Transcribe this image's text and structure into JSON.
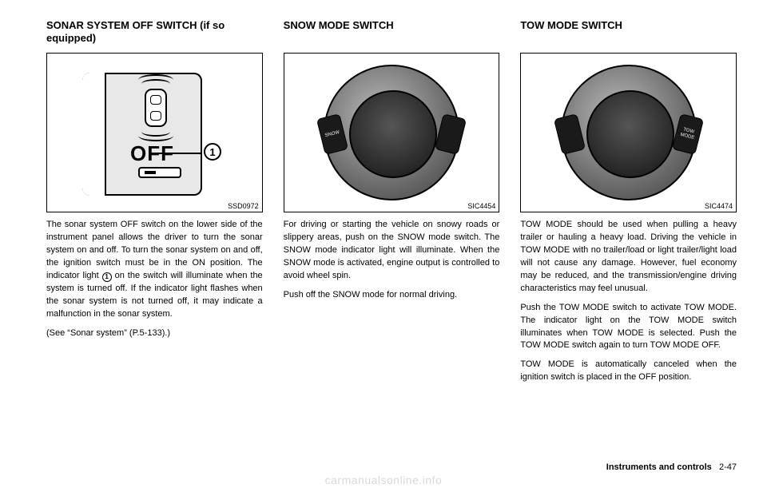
{
  "col1": {
    "heading": "SONAR SYSTEM OFF SWITCH (if so equipped)",
    "fig_label": "SSD0972",
    "off_text": "OFF",
    "callout_num": "1",
    "p1a": "The sonar system OFF switch on the lower side of the instrument panel allows the driver to turn the sonar system on and off. To turn the sonar system on and off, the ignition switch must be in the ON position. The indicator light ",
    "p1b": " on the switch will illuminate when the system is turned off. If the indicator light flashes when the sonar system is not turned off, it may indicate a malfunction in the sonar system.",
    "p2": "(See “Sonar system” (P.5-133).)"
  },
  "col2": {
    "heading": "SNOW MODE SWITCH",
    "fig_label": "SIC4454",
    "btn_label": "SNOW",
    "p1": "For driving or starting the vehicle on snowy roads or slippery areas, push on the SNOW mode switch. The SNOW mode indicator light will illuminate. When the SNOW mode is activated, engine output is controlled to avoid wheel spin.",
    "p2": "Push off the SNOW mode for normal driving."
  },
  "col3": {
    "heading": "TOW MODE SWITCH",
    "fig_label": "SIC4474",
    "btn_label": "TOW MODE",
    "p1": "TOW MODE should be used when pulling a heavy trailer or hauling a heavy load. Driving the vehicle in TOW MODE with no trailer/load or light trailer/light load will not cause any damage. However, fuel economy may be reduced, and the transmission/engine driving characteristics may feel unusual.",
    "p2": "Push the TOW MODE switch to activate TOW MODE. The indicator light on the TOW MODE switch illuminates when TOW MODE is selected. Push the TOW MODE switch again to turn TOW MODE OFF.",
    "p3": "TOW MODE is automatically canceled when the ignition switch is placed in the OFF position."
  },
  "footer": {
    "section": "Instruments and controls",
    "page": "2-47"
  },
  "watermark": "carmanualsonline.info"
}
